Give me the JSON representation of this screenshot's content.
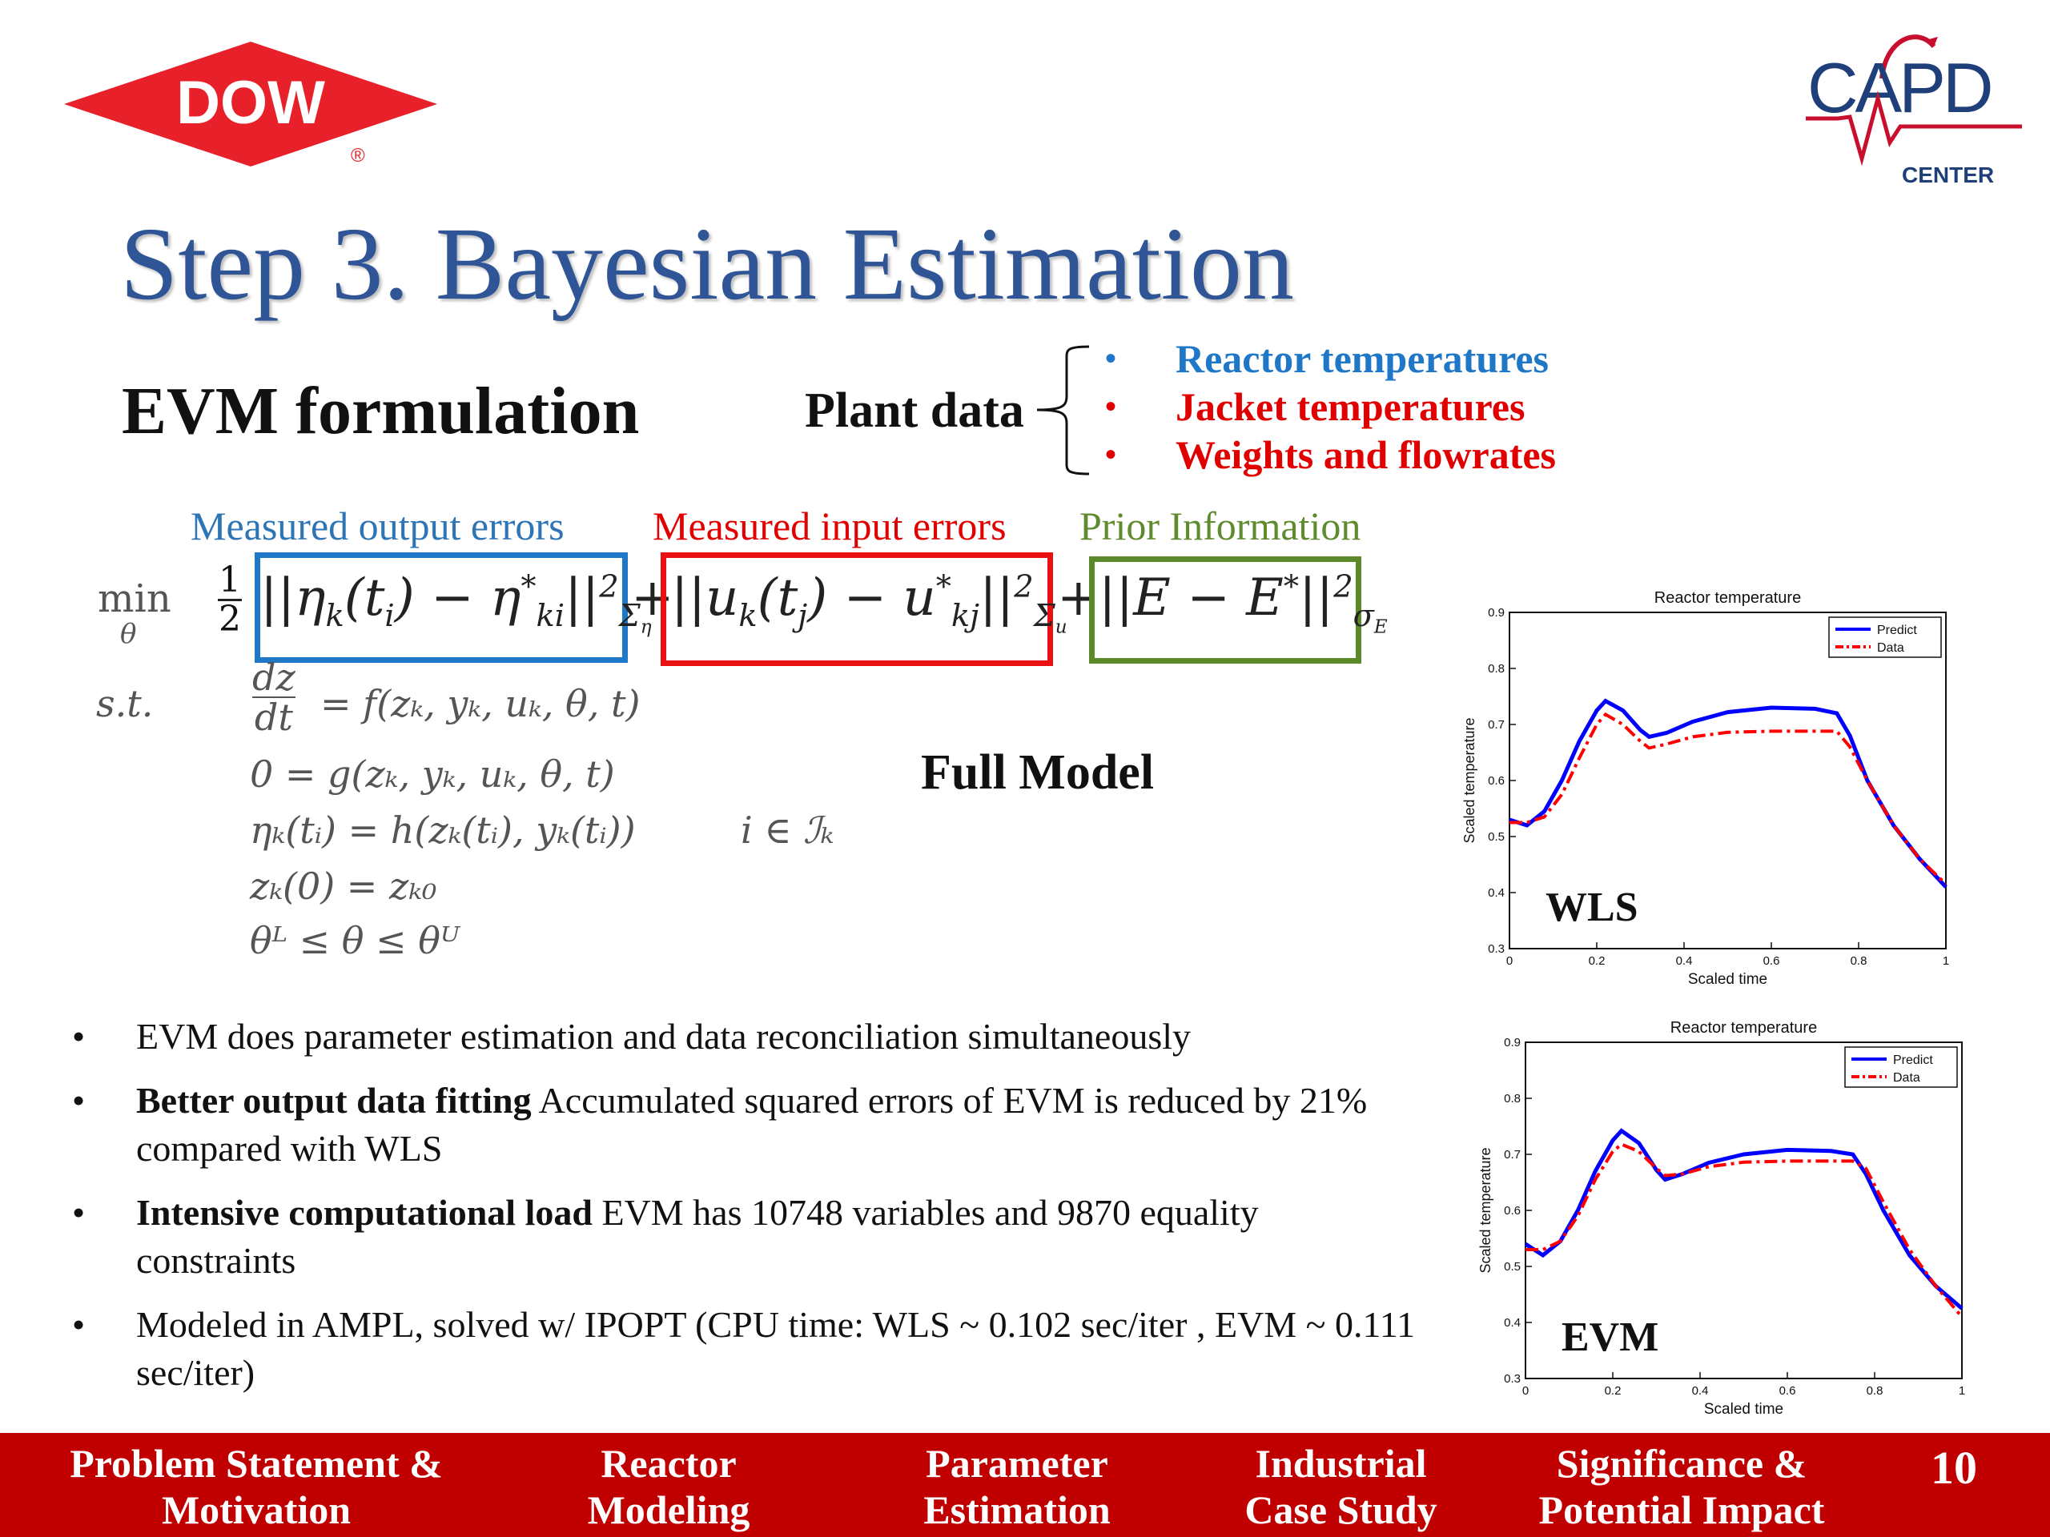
{
  "logos": {
    "dow_text": "DOW",
    "dow_reg": "®",
    "dow_color": "#e8202a",
    "capd_text": "CAPD",
    "capd_sub": "CENTER",
    "capd_color": "#1f3f7a",
    "capd_accent": "#c8102e"
  },
  "title": "Step 3. Bayesian Estimation",
  "evm_heading": "EVM formulation",
  "plant_data": {
    "label": "Plant data",
    "items": [
      {
        "text": "Reactor temperatures",
        "color": "#1f77c8"
      },
      {
        "text": "Jacket temperatures",
        "color": "#e00000"
      },
      {
        "text": "Weights and flowrates",
        "color": "#e00000"
      }
    ]
  },
  "terms": {
    "output": "Measured output errors",
    "input": "Measured input errors",
    "prior": "Prior Information"
  },
  "formula": {
    "min": "min",
    "theta": "θ",
    "half_num": "1",
    "half_den": "2",
    "st": "s.t.",
    "constraint_fraction_num": "dz",
    "constraint_fraction_den": "dt",
    "constraint1": "= f(zₖ, yₖ, uₖ, θ, t)",
    "constraint2": "0 = g(zₖ, yₖ, uₖ, θ, t)",
    "constraint3": "ηₖ(tᵢ) = h(zₖ(tᵢ), yₖ(tᵢ))",
    "constraint3_index": "i ∈ ℐₖ",
    "constraint4": "zₖ(0) = zₖ₀",
    "constraint5": "θᴸ ≤ θ ≤ θᵁ"
  },
  "full_model": "Full Model",
  "bullets": [
    {
      "bold": "",
      "text": "EVM does parameter estimation and data reconciliation simultaneously"
    },
    {
      "bold": "Better output data fitting",
      "text": "  Accumulated squared errors of EVM is reduced by 21% compared with WLS"
    },
    {
      "bold": "Intensive computational load",
      "text": "  EVM has 10748 variables and 9870 equality constraints"
    },
    {
      "bold": "",
      "text": "Modeled in AMPL, solved w/ IPOPT (CPU time: WLS ~ 0.102 sec/iter , EVM ~ 0.111 sec/iter)"
    }
  ],
  "chart_data": [
    {
      "type": "line",
      "title": "Reactor temperature",
      "xlabel": "Scaled time",
      "ylabel": "Scaled temperature",
      "label": "WLS",
      "xlim": [
        0,
        1
      ],
      "ylim": [
        0.3,
        0.9
      ],
      "xticks": [
        "0",
        "0.2",
        "0.4",
        "0.6",
        "0.8",
        "1"
      ],
      "yticks": [
        "0.3",
        "0.4",
        "0.5",
        "0.6",
        "0.7",
        "0.8",
        "0.9"
      ],
      "legend": "top-right",
      "series": [
        {
          "name": "Predict",
          "color": "#0000ff",
          "style": "solid",
          "x": [
            0,
            0.04,
            0.08,
            0.12,
            0.16,
            0.2,
            0.22,
            0.26,
            0.3,
            0.32,
            0.36,
            0.42,
            0.5,
            0.6,
            0.7,
            0.75,
            0.78,
            0.82,
            0.88,
            0.94,
            1
          ],
          "y": [
            0.53,
            0.52,
            0.545,
            0.6,
            0.67,
            0.725,
            0.742,
            0.725,
            0.69,
            0.678,
            0.685,
            0.705,
            0.722,
            0.73,
            0.728,
            0.72,
            0.68,
            0.6,
            0.52,
            0.46,
            0.41
          ]
        },
        {
          "name": "Data",
          "color": "#ff0000",
          "style": "dashdot",
          "x": [
            0,
            0.04,
            0.08,
            0.12,
            0.16,
            0.2,
            0.22,
            0.26,
            0.3,
            0.32,
            0.36,
            0.42,
            0.5,
            0.6,
            0.7,
            0.75,
            0.78,
            0.82,
            0.88,
            0.94,
            1
          ],
          "y": [
            0.525,
            0.525,
            0.535,
            0.575,
            0.64,
            0.7,
            0.718,
            0.7,
            0.67,
            0.658,
            0.665,
            0.678,
            0.686,
            0.688,
            0.688,
            0.688,
            0.66,
            0.6,
            0.52,
            0.46,
            0.415
          ]
        }
      ]
    },
    {
      "type": "line",
      "title": "Reactor temperature",
      "xlabel": "Scaled time",
      "ylabel": "Scaled temperature",
      "label": "EVM",
      "xlim": [
        0,
        1
      ],
      "ylim": [
        0.3,
        0.9
      ],
      "xticks": [
        "0",
        "0.2",
        "0.4",
        "0.6",
        "0.8",
        "1"
      ],
      "yticks": [
        "0.3",
        "0.4",
        "0.5",
        "0.6",
        "0.7",
        "0.8",
        "0.9"
      ],
      "legend": "top-right",
      "series": [
        {
          "name": "Predict",
          "color": "#0000ff",
          "style": "solid",
          "x": [
            0,
            0.04,
            0.08,
            0.12,
            0.16,
            0.2,
            0.22,
            0.26,
            0.3,
            0.32,
            0.36,
            0.42,
            0.5,
            0.6,
            0.7,
            0.75,
            0.78,
            0.82,
            0.88,
            0.94,
            1
          ],
          "y": [
            0.54,
            0.52,
            0.545,
            0.6,
            0.67,
            0.725,
            0.742,
            0.72,
            0.672,
            0.655,
            0.665,
            0.685,
            0.7,
            0.708,
            0.706,
            0.7,
            0.665,
            0.6,
            0.52,
            0.465,
            0.425
          ]
        },
        {
          "name": "Data",
          "color": "#ff0000",
          "style": "dashdot",
          "x": [
            0,
            0.04,
            0.08,
            0.12,
            0.16,
            0.2,
            0.22,
            0.26,
            0.3,
            0.32,
            0.36,
            0.42,
            0.5,
            0.6,
            0.7,
            0.75,
            0.78,
            0.82,
            0.88,
            0.94,
            1
          ],
          "y": [
            0.53,
            0.53,
            0.545,
            0.59,
            0.655,
            0.705,
            0.718,
            0.705,
            0.675,
            0.662,
            0.665,
            0.678,
            0.686,
            0.688,
            0.688,
            0.688,
            0.675,
            0.615,
            0.53,
            0.465,
            0.41
          ]
        }
      ]
    }
  ],
  "nav": {
    "items": [
      {
        "line1": "Problem Statement &",
        "line2": "Motivation",
        "active": false
      },
      {
        "line1": "Reactor",
        "line2": "Modeling",
        "active": false
      },
      {
        "line1": "Parameter",
        "line2": "Estimation",
        "active": false
      },
      {
        "line1": "Industrial",
        "line2": "Case Study",
        "active": true
      },
      {
        "line1": "Significance &",
        "line2": "Potential Impact",
        "active": false
      }
    ],
    "page_number": "10",
    "bar_color": "#c00000"
  }
}
